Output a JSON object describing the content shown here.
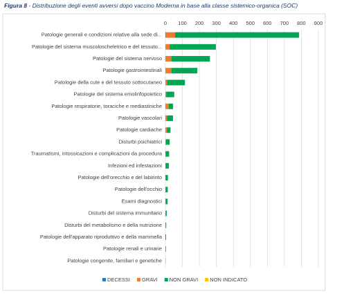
{
  "chart_data": {
    "type": "bar",
    "orientation": "horizontal",
    "stacked": true,
    "figure_label": "Figura 8",
    "title": "- Distribuzione degli eventi avversi dopo vaccino Moderna in base alla classe sistemico-organica (SOC)",
    "categories": [
      "Patologie generali e condizioni relative alla sede di...",
      "Patologie del sistema muscoloscheletrico e del tessuto...",
      "Patologie del sistema nervoso",
      "Patologie gastrointestinali",
      "Patologie della cute e del tessuto sottocutaneo",
      "Patologie del sistema emolinfopoietico",
      "Patologie respiratorie, toraciche e mediastiniche",
      "Patologie vascolari",
      "Patologie cardiache",
      "Disturbi psichiatrici",
      "Traumatismi, intossicazioni e complicazioni da procedura",
      "Infezioni ed infestazioni",
      "Patologie dell'orecchio e del labirinto",
      "Patologie dell'occhio",
      "Esami diagnostici",
      "Disturbi del sistema immunitario",
      "Disturbi del metabolismo e della nutrizione",
      "Patologie dell'apparato riproduttivo e della mammella",
      "Patologie renali e urinarie",
      "Patologie congenite, familiari e genetiche"
    ],
    "series": [
      {
        "name": "DECESSI",
        "color": "#2e75b6",
        "values": [
          2,
          0,
          0,
          0,
          0,
          0,
          0,
          0,
          0,
          0,
          0,
          0,
          0,
          0,
          0,
          0,
          0,
          0,
          0,
          0
        ]
      },
      {
        "name": "GRAVI",
        "color": "#ed7d31",
        "values": [
          55,
          25,
          35,
          35,
          10,
          5,
          20,
          10,
          10,
          3,
          2,
          2,
          1,
          1,
          1,
          2,
          1,
          0,
          0,
          0
        ]
      },
      {
        "name": "NON GRAVI",
        "color": "#00a651",
        "values": [
          730,
          272,
          227,
          153,
          105,
          47,
          25,
          35,
          20,
          22,
          20,
          18,
          14,
          13,
          12,
          6,
          4,
          4,
          3,
          1
        ]
      },
      {
        "name": "NON INDICATO",
        "color": "#ffc000",
        "values": [
          0,
          0,
          0,
          0,
          0,
          0,
          0,
          0,
          0,
          0,
          0,
          0,
          0,
          0,
          0,
          0,
          0,
          0,
          0,
          0
        ]
      }
    ],
    "xlim": [
      0,
      900
    ],
    "xticks": [
      0,
      100,
      200,
      300,
      400,
      500,
      600,
      700,
      800,
      900
    ],
    "grid": true,
    "legend": "bottom"
  }
}
